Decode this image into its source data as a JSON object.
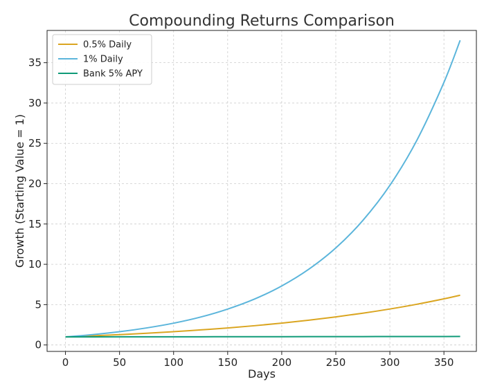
{
  "chart_data": {
    "type": "line",
    "title": "Compounding Returns Comparison",
    "xlabel": "Days",
    "ylabel": "Growth (Starting Value = 1)",
    "xlim": [
      -17,
      380
    ],
    "ylim": [
      -0.8,
      39
    ],
    "xticks": [
      0,
      50,
      100,
      150,
      200,
      250,
      300,
      350
    ],
    "yticks": [
      0,
      5,
      10,
      15,
      20,
      25,
      30,
      35
    ],
    "grid": true,
    "legend_position": "top-left",
    "x": [
      0,
      25,
      50,
      75,
      100,
      125,
      150,
      175,
      200,
      225,
      250,
      275,
      300,
      325,
      350,
      365
    ],
    "series": [
      {
        "name": "0.5% Daily",
        "color": "#DAA520",
        "values": [
          1.0,
          1.13,
          1.28,
          1.45,
          1.65,
          1.87,
          2.11,
          2.39,
          2.71,
          3.07,
          3.48,
          3.94,
          4.46,
          5.05,
          5.72,
          6.17
        ]
      },
      {
        "name": "1% Daily",
        "color": "#5BB5DB",
        "values": [
          1.0,
          1.28,
          1.64,
          2.11,
          2.7,
          3.46,
          4.45,
          5.7,
          7.32,
          9.39,
          12.03,
          15.44,
          19.79,
          25.39,
          32.56,
          37.78
        ]
      },
      {
        "name": "Bank 5% APY",
        "color": "#0E9A77",
        "values": [
          1.0,
          1.003,
          1.007,
          1.01,
          1.013,
          1.017,
          1.02,
          1.024,
          1.027,
          1.031,
          1.034,
          1.037,
          1.041,
          1.044,
          1.048,
          1.05
        ]
      }
    ]
  }
}
